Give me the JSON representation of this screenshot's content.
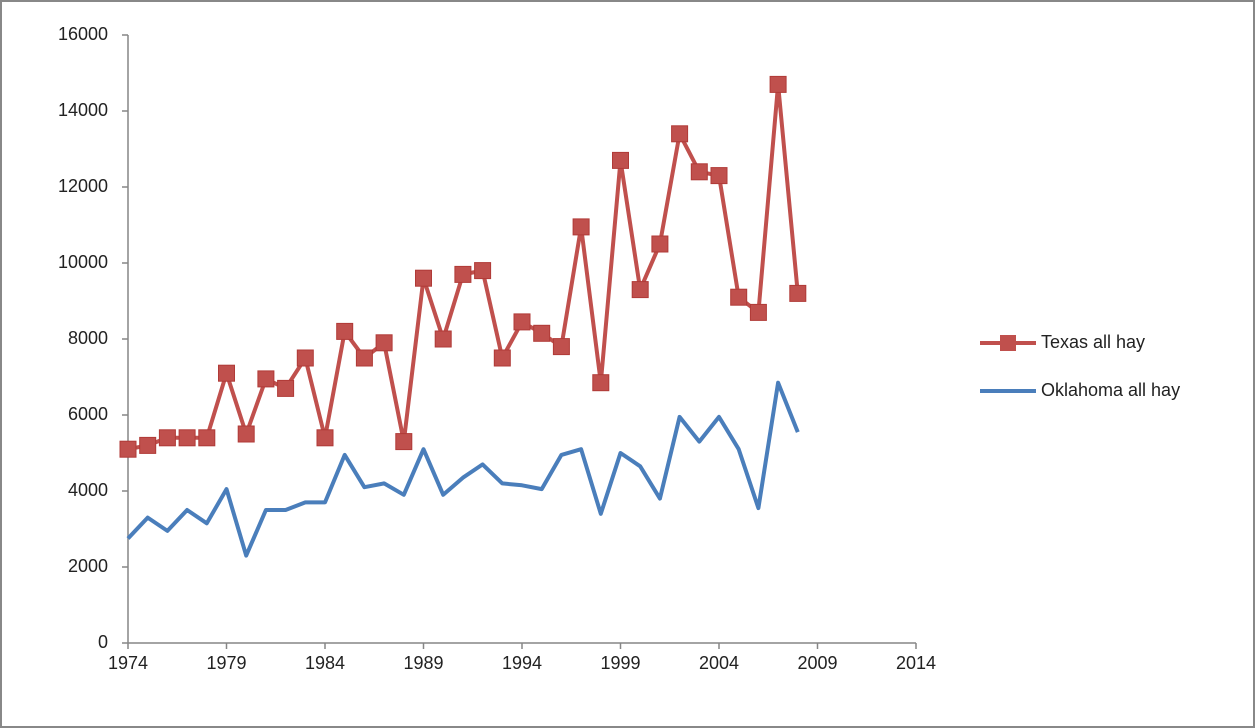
{
  "chart_data": {
    "type": "line",
    "x": [
      1974,
      1975,
      1976,
      1977,
      1978,
      1979,
      1980,
      1981,
      1982,
      1983,
      1984,
      1985,
      1986,
      1987,
      1988,
      1989,
      1990,
      1991,
      1992,
      1993,
      1994,
      1995,
      1996,
      1997,
      1998,
      1999,
      2000,
      2001,
      2002,
      2003,
      2004,
      2005,
      2006,
      2007,
      2008
    ],
    "series": [
      {
        "name": "Texas all hay",
        "color": "#c0504d",
        "marker": "square",
        "values": [
          5100,
          5200,
          5400,
          5400,
          5400,
          7100,
          5500,
          6950,
          6700,
          7500,
          5400,
          8200,
          7500,
          7900,
          5300,
          9600,
          8000,
          9700,
          9800,
          7500,
          8450,
          8150,
          7800,
          10950,
          6850,
          12700,
          9300,
          10500,
          13400,
          12400,
          12300,
          9100,
          8700,
          14700,
          9200
        ]
      },
      {
        "name": "Oklahoma all hay",
        "color": "#4a7ebb",
        "marker": "none",
        "values": [
          2750,
          3300,
          2950,
          3500,
          3150,
          4050,
          2300,
          3500,
          3500,
          3700,
          3700,
          4950,
          4100,
          4200,
          3900,
          5100,
          3900,
          4350,
          4700,
          4200,
          4150,
          4050,
          4950,
          5100,
          3400,
          5000,
          4650,
          3800,
          5950,
          5300,
          5950,
          5100,
          3550,
          6850,
          5550
        ]
      }
    ],
    "xlim": [
      1974,
      2014
    ],
    "xticks": [
      1974,
      1979,
      1984,
      1989,
      1994,
      1999,
      2004,
      2009,
      2014
    ],
    "ylim": [
      0,
      16000
    ],
    "yticks": [
      0,
      2000,
      4000,
      6000,
      8000,
      10000,
      12000,
      14000,
      16000
    ],
    "grid": false,
    "legend": "right"
  }
}
